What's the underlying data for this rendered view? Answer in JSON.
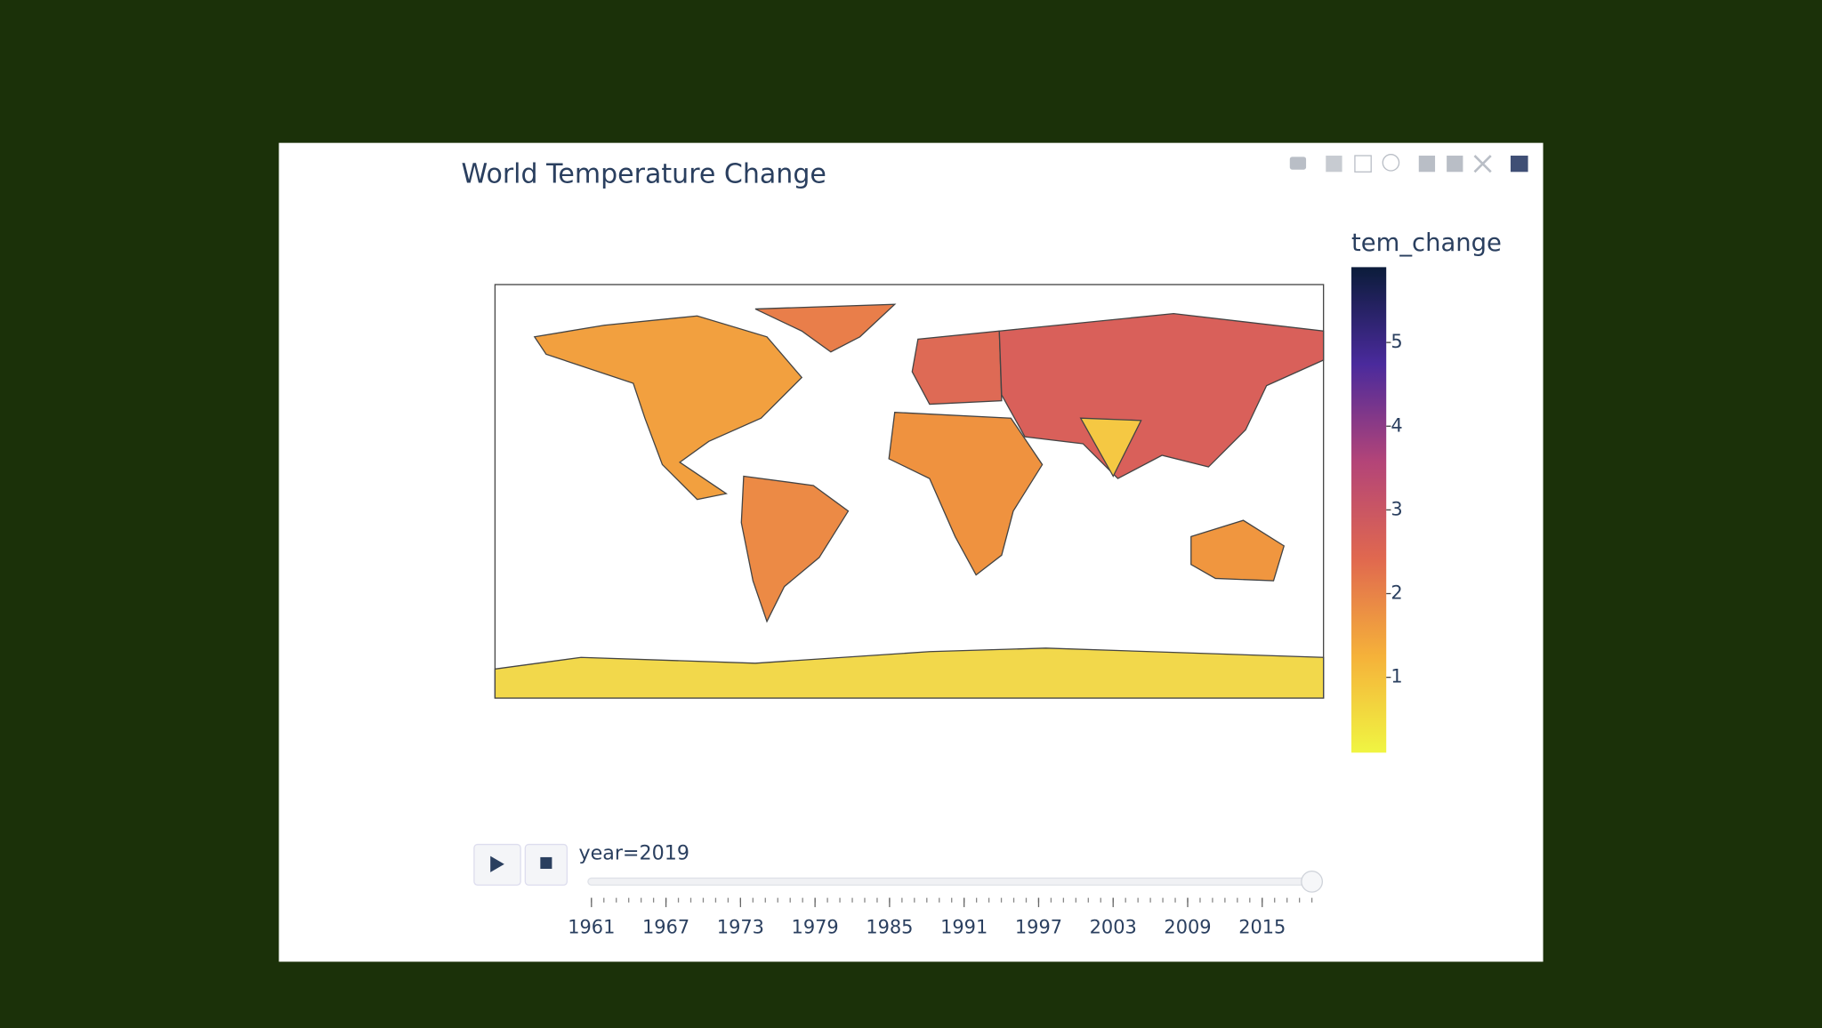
{
  "title": "World Temperature Change",
  "colorbar": {
    "title": "tem_change",
    "range": [
      0.1,
      5.9
    ],
    "ticks": [
      1,
      2,
      3,
      4,
      5
    ]
  },
  "slider": {
    "current_label": "year=2019",
    "min": 1961,
    "max": 2019,
    "value": 2019,
    "labels": [
      1961,
      1967,
      1973,
      1979,
      1985,
      1991,
      1997,
      2003,
      2009,
      2015
    ]
  }
}
